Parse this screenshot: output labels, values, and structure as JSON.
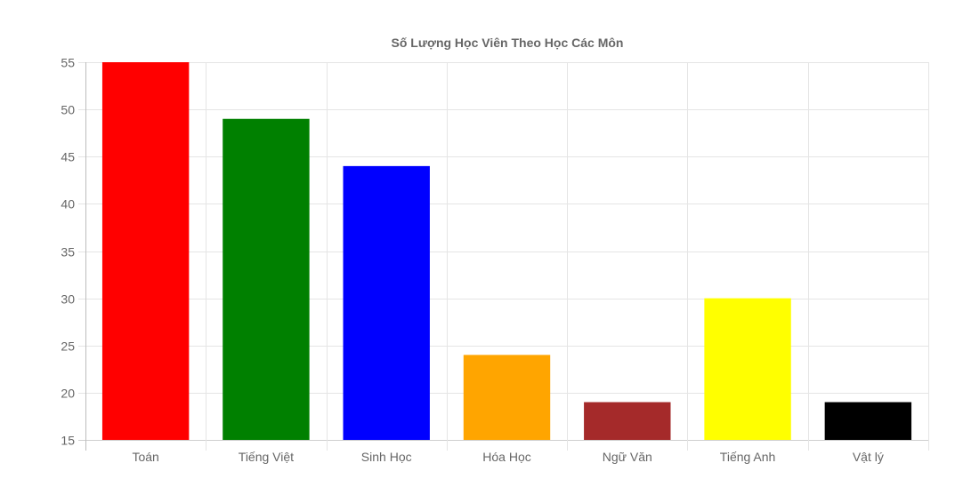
{
  "chart_data": {
    "type": "bar",
    "title": "Số Lượng Học Viên Theo Học Các Môn",
    "categories": [
      "Toán",
      "Tiếng Việt",
      "Sinh Học",
      "Hóa Học",
      "Ngữ Văn",
      "Tiếng Anh",
      "Vật lý"
    ],
    "series": [
      {
        "values": [
          55,
          49,
          44,
          24,
          19,
          30,
          19
        ],
        "colors": [
          "#ff0000",
          "#008000",
          "#0000ff",
          "#ffa500",
          "#a52a2a",
          "#ffff00",
          "#000000"
        ]
      }
    ],
    "ylim": [
      15,
      55
    ],
    "y_ticks": [
      15,
      20,
      25,
      30,
      35,
      40,
      45,
      50,
      55
    ],
    "grid": true,
    "legend": "none",
    "xlabel": "",
    "ylabel": ""
  }
}
